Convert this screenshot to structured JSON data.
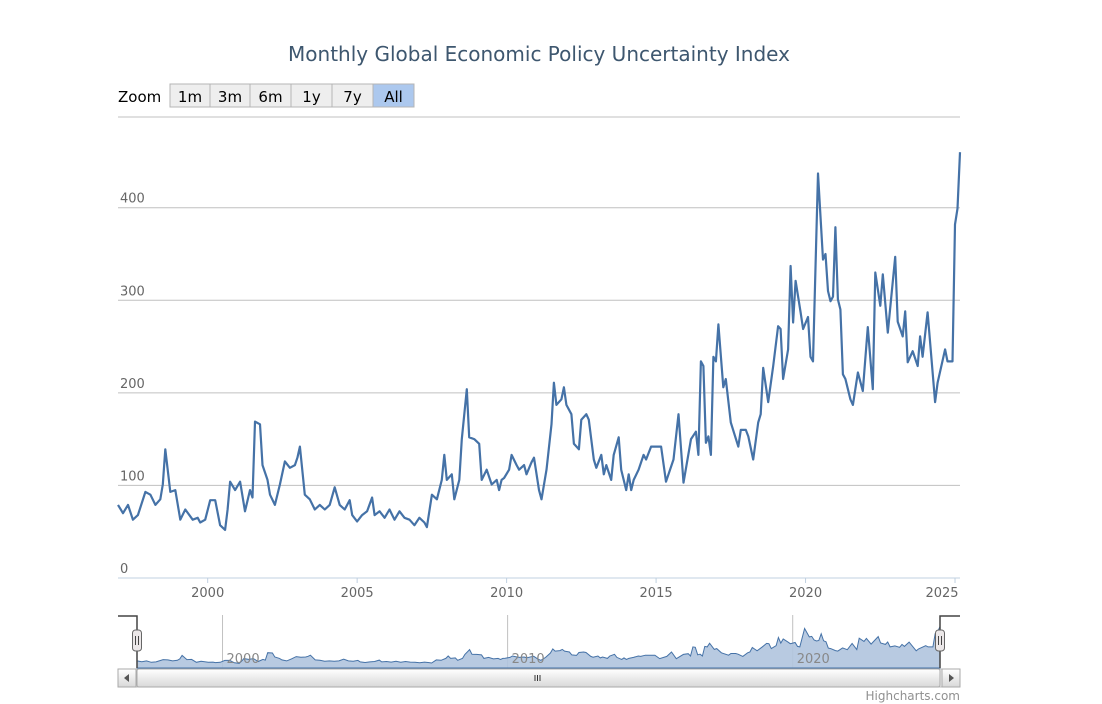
{
  "chart_data": {
    "type": "line",
    "title": "Monthly Global Economic Policy Uncertainty Index",
    "xlabel": "",
    "ylabel": "",
    "xlim": [
      "1997-01",
      "2025-03"
    ],
    "ylim": [
      0,
      498
    ],
    "y_ticks": [
      "0",
      "100",
      "200",
      "300",
      "400"
    ],
    "x_ticks": [
      "2000",
      "2005",
      "2010",
      "2015",
      "2020",
      "2025"
    ],
    "grid": true,
    "legend": "none",
    "color": "#4572a7",
    "points": [
      [
        "1997-01",
        79
      ],
      [
        "1997-03",
        70
      ],
      [
        "1997-05",
        79
      ],
      [
        "1997-07",
        63
      ],
      [
        "1997-09",
        68
      ],
      [
        "1997-12",
        93
      ],
      [
        "1998-02",
        90
      ],
      [
        "1998-04",
        79
      ],
      [
        "1998-06",
        85
      ],
      [
        "1998-07",
        101
      ],
      [
        "1998-08",
        139
      ],
      [
        "1998-10",
        93
      ],
      [
        "1998-12",
        95
      ],
      [
        "1999-02",
        63
      ],
      [
        "1999-04",
        74
      ],
      [
        "1999-07",
        63
      ],
      [
        "1999-09",
        65
      ],
      [
        "1999-10",
        60
      ],
      [
        "1999-12",
        63
      ],
      [
        "2000-02",
        84
      ],
      [
        "2000-04",
        84
      ],
      [
        "2000-06",
        57
      ],
      [
        "2000-08",
        52
      ],
      [
        "2000-09",
        74
      ],
      [
        "2000-10",
        104
      ],
      [
        "2000-12",
        95
      ],
      [
        "2001-02",
        104
      ],
      [
        "2001-04",
        72
      ],
      [
        "2001-06",
        95
      ],
      [
        "2001-07",
        87
      ],
      [
        "2001-08",
        169
      ],
      [
        "2001-10",
        166
      ],
      [
        "2001-11",
        122
      ],
      [
        "2002-01",
        106
      ],
      [
        "2002-02",
        90
      ],
      [
        "2002-04",
        79
      ],
      [
        "2002-06",
        101
      ],
      [
        "2002-08",
        126
      ],
      [
        "2002-10",
        119
      ],
      [
        "2002-12",
        122
      ],
      [
        "2003-01",
        130
      ],
      [
        "2003-02",
        142
      ],
      [
        "2003-04",
        90
      ],
      [
        "2003-06",
        85
      ],
      [
        "2003-08",
        74
      ],
      [
        "2003-10",
        79
      ],
      [
        "2003-12",
        74
      ],
      [
        "2004-02",
        79
      ],
      [
        "2004-04",
        98
      ],
      [
        "2004-06",
        79
      ],
      [
        "2004-08",
        74
      ],
      [
        "2004-10",
        84
      ],
      [
        "2004-11",
        68
      ],
      [
        "2005-01",
        61
      ],
      [
        "2005-03",
        68
      ],
      [
        "2005-05",
        72
      ],
      [
        "2005-07",
        87
      ],
      [
        "2005-08",
        68
      ],
      [
        "2005-10",
        72
      ],
      [
        "2005-12",
        65
      ],
      [
        "2006-02",
        74
      ],
      [
        "2006-04",
        63
      ],
      [
        "2006-06",
        72
      ],
      [
        "2006-08",
        65
      ],
      [
        "2006-10",
        63
      ],
      [
        "2006-12",
        57
      ],
      [
        "2007-02",
        65
      ],
      [
        "2007-04",
        60
      ],
      [
        "2007-05",
        55
      ],
      [
        "2007-07",
        90
      ],
      [
        "2007-09",
        85
      ],
      [
        "2007-11",
        106
      ],
      [
        "2007-12",
        133
      ],
      [
        "2008-01",
        106
      ],
      [
        "2008-03",
        112
      ],
      [
        "2008-04",
        85
      ],
      [
        "2008-06",
        106
      ],
      [
        "2008-07",
        150
      ],
      [
        "2008-09",
        204
      ],
      [
        "2008-10",
        152
      ],
      [
        "2008-12",
        150
      ],
      [
        "2009-02",
        145
      ],
      [
        "2009-03",
        106
      ],
      [
        "2009-05",
        117
      ],
      [
        "2009-07",
        101
      ],
      [
        "2009-09",
        106
      ],
      [
        "2009-10",
        95
      ],
      [
        "2009-11",
        106
      ],
      [
        "2009-12",
        108
      ],
      [
        "2010-02",
        117
      ],
      [
        "2010-03",
        133
      ],
      [
        "2010-05",
        122
      ],
      [
        "2010-06",
        117
      ],
      [
        "2010-08",
        122
      ],
      [
        "2010-09",
        112
      ],
      [
        "2010-11",
        125
      ],
      [
        "2010-12",
        130
      ],
      [
        "2011-02",
        95
      ],
      [
        "2011-03",
        85
      ],
      [
        "2011-05",
        117
      ],
      [
        "2011-07",
        166
      ],
      [
        "2011-08",
        211
      ],
      [
        "2011-09",
        187
      ],
      [
        "2011-11",
        193
      ],
      [
        "2011-12",
        206
      ],
      [
        "2012-01",
        187
      ],
      [
        "2012-03",
        177
      ],
      [
        "2012-04",
        145
      ],
      [
        "2012-06",
        139
      ],
      [
        "2012-07",
        171
      ],
      [
        "2012-09",
        177
      ],
      [
        "2012-10",
        171
      ],
      [
        "2012-12",
        128
      ],
      [
        "2013-01",
        119
      ],
      [
        "2013-03",
        133
      ],
      [
        "2013-04",
        112
      ],
      [
        "2013-05",
        122
      ],
      [
        "2013-07",
        106
      ],
      [
        "2013-08",
        133
      ],
      [
        "2013-10",
        152
      ],
      [
        "2013-11",
        117
      ],
      [
        "2014-01",
        95
      ],
      [
        "2014-02",
        112
      ],
      [
        "2014-03",
        95
      ],
      [
        "2014-04",
        106
      ],
      [
        "2014-06",
        117
      ],
      [
        "2014-08",
        133
      ],
      [
        "2014-09",
        128
      ],
      [
        "2014-11",
        142
      ],
      [
        "2015-03",
        142
      ],
      [
        "2015-05",
        104
      ],
      [
        "2015-08",
        128
      ],
      [
        "2015-10",
        177
      ],
      [
        "2015-12",
        103
      ],
      [
        "2016-03",
        150
      ],
      [
        "2016-05",
        158
      ],
      [
        "2016-06",
        133
      ],
      [
        "2016-07",
        234
      ],
      [
        "2016-08",
        229
      ],
      [
        "2016-09",
        146
      ],
      [
        "2016-10",
        153
      ],
      [
        "2016-11",
        133
      ],
      [
        "2016-12",
        239
      ],
      [
        "2017-01",
        234
      ],
      [
        "2017-02",
        274
      ],
      [
        "2017-04",
        206
      ],
      [
        "2017-05",
        215
      ],
      [
        "2017-07",
        168
      ],
      [
        "2017-10",
        142
      ],
      [
        "2017-11",
        160
      ],
      [
        "2018-01",
        160
      ],
      [
        "2018-02",
        153
      ],
      [
        "2018-04",
        128
      ],
      [
        "2018-06",
        168
      ],
      [
        "2018-07",
        177
      ],
      [
        "2018-08",
        227
      ],
      [
        "2018-10",
        190
      ],
      [
        "2018-12",
        229
      ],
      [
        "2019-02",
        272
      ],
      [
        "2019-03",
        269
      ],
      [
        "2019-04",
        215
      ],
      [
        "2019-06",
        247
      ],
      [
        "2019-07",
        337
      ],
      [
        "2019-08",
        276
      ],
      [
        "2019-09",
        321
      ],
      [
        "2019-11",
        287
      ],
      [
        "2019-12",
        269
      ],
      [
        "2020-02",
        282
      ],
      [
        "2020-03",
        239
      ],
      [
        "2020-04",
        234
      ],
      [
        "2020-06",
        437
      ],
      [
        "2020-08",
        344
      ],
      [
        "2020-09",
        350
      ],
      [
        "2020-10",
        310
      ],
      [
        "2020-11",
        299
      ],
      [
        "2020-12",
        304
      ],
      [
        "2021-01",
        379
      ],
      [
        "2021-02",
        301
      ],
      [
        "2021-03",
        290
      ],
      [
        "2021-04",
        220
      ],
      [
        "2021-05",
        215
      ],
      [
        "2021-07",
        193
      ],
      [
        "2021-08",
        187
      ],
      [
        "2021-10",
        222
      ],
      [
        "2021-12",
        202
      ],
      [
        "2022-02",
        271
      ],
      [
        "2022-04",
        204
      ],
      [
        "2022-05",
        330
      ],
      [
        "2022-07",
        294
      ],
      [
        "2022-08",
        328
      ],
      [
        "2022-10",
        265
      ],
      [
        "2023-01",
        347
      ],
      [
        "2023-02",
        277
      ],
      [
        "2023-04",
        261
      ],
      [
        "2023-05",
        288
      ],
      [
        "2023-06",
        233
      ],
      [
        "2023-08",
        245
      ],
      [
        "2023-10",
        229
      ],
      [
        "2023-11",
        261
      ],
      [
        "2023-12",
        239
      ],
      [
        "2024-02",
        287
      ],
      [
        "2024-05",
        190
      ],
      [
        "2024-06",
        211
      ],
      [
        "2024-09",
        247
      ],
      [
        "2024-10",
        234
      ],
      [
        "2024-12",
        234
      ],
      [
        "2025-01",
        382
      ],
      [
        "2025-02",
        399
      ],
      [
        "2025-03",
        460
      ]
    ],
    "navigator": {
      "x_ticks": [
        "2000",
        "2010",
        "2020"
      ],
      "fill": "#b0c4de"
    }
  },
  "range_selector": {
    "label": "Zoom",
    "buttons": [
      "1m",
      "3m",
      "6m",
      "1y",
      "7y",
      "All"
    ],
    "selected": "All",
    "selected_color": "#acc8ee"
  },
  "credit": "Highcharts.com"
}
